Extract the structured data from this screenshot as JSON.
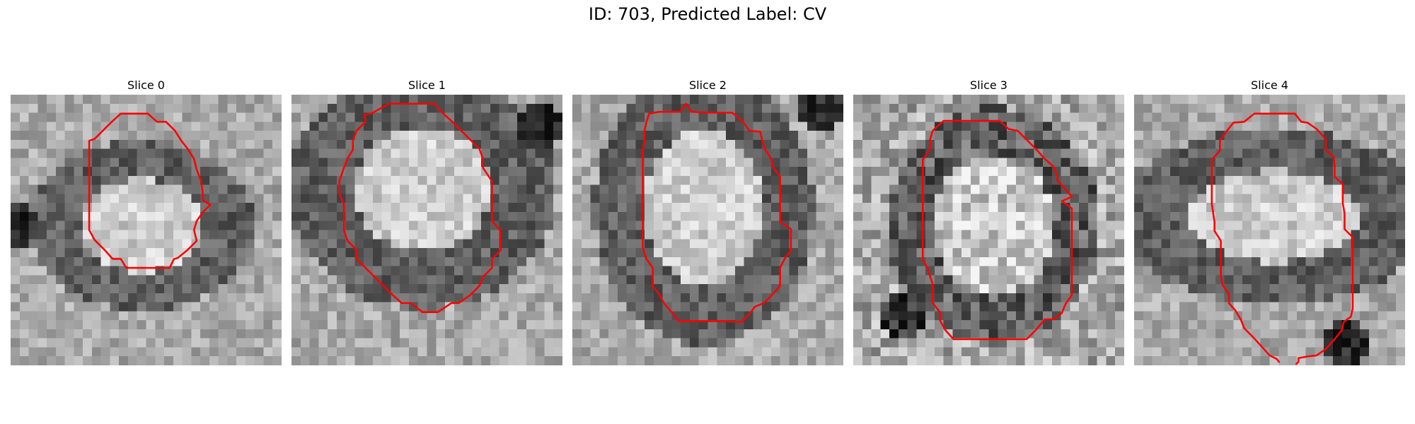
{
  "figure": {
    "title": "ID: 703, Predicted Label: CV",
    "contour_color": "#ff0000",
    "colormap": "grayscale",
    "grid_size": 30
  },
  "slices": [
    {
      "title": "Slice 0",
      "seed": 11
    },
    {
      "title": "Slice 1",
      "seed": 23
    },
    {
      "title": "Slice 2",
      "seed": 37
    },
    {
      "title": "Slice 3",
      "seed": 53
    },
    {
      "title": "Slice 4",
      "seed": 71
    }
  ]
}
